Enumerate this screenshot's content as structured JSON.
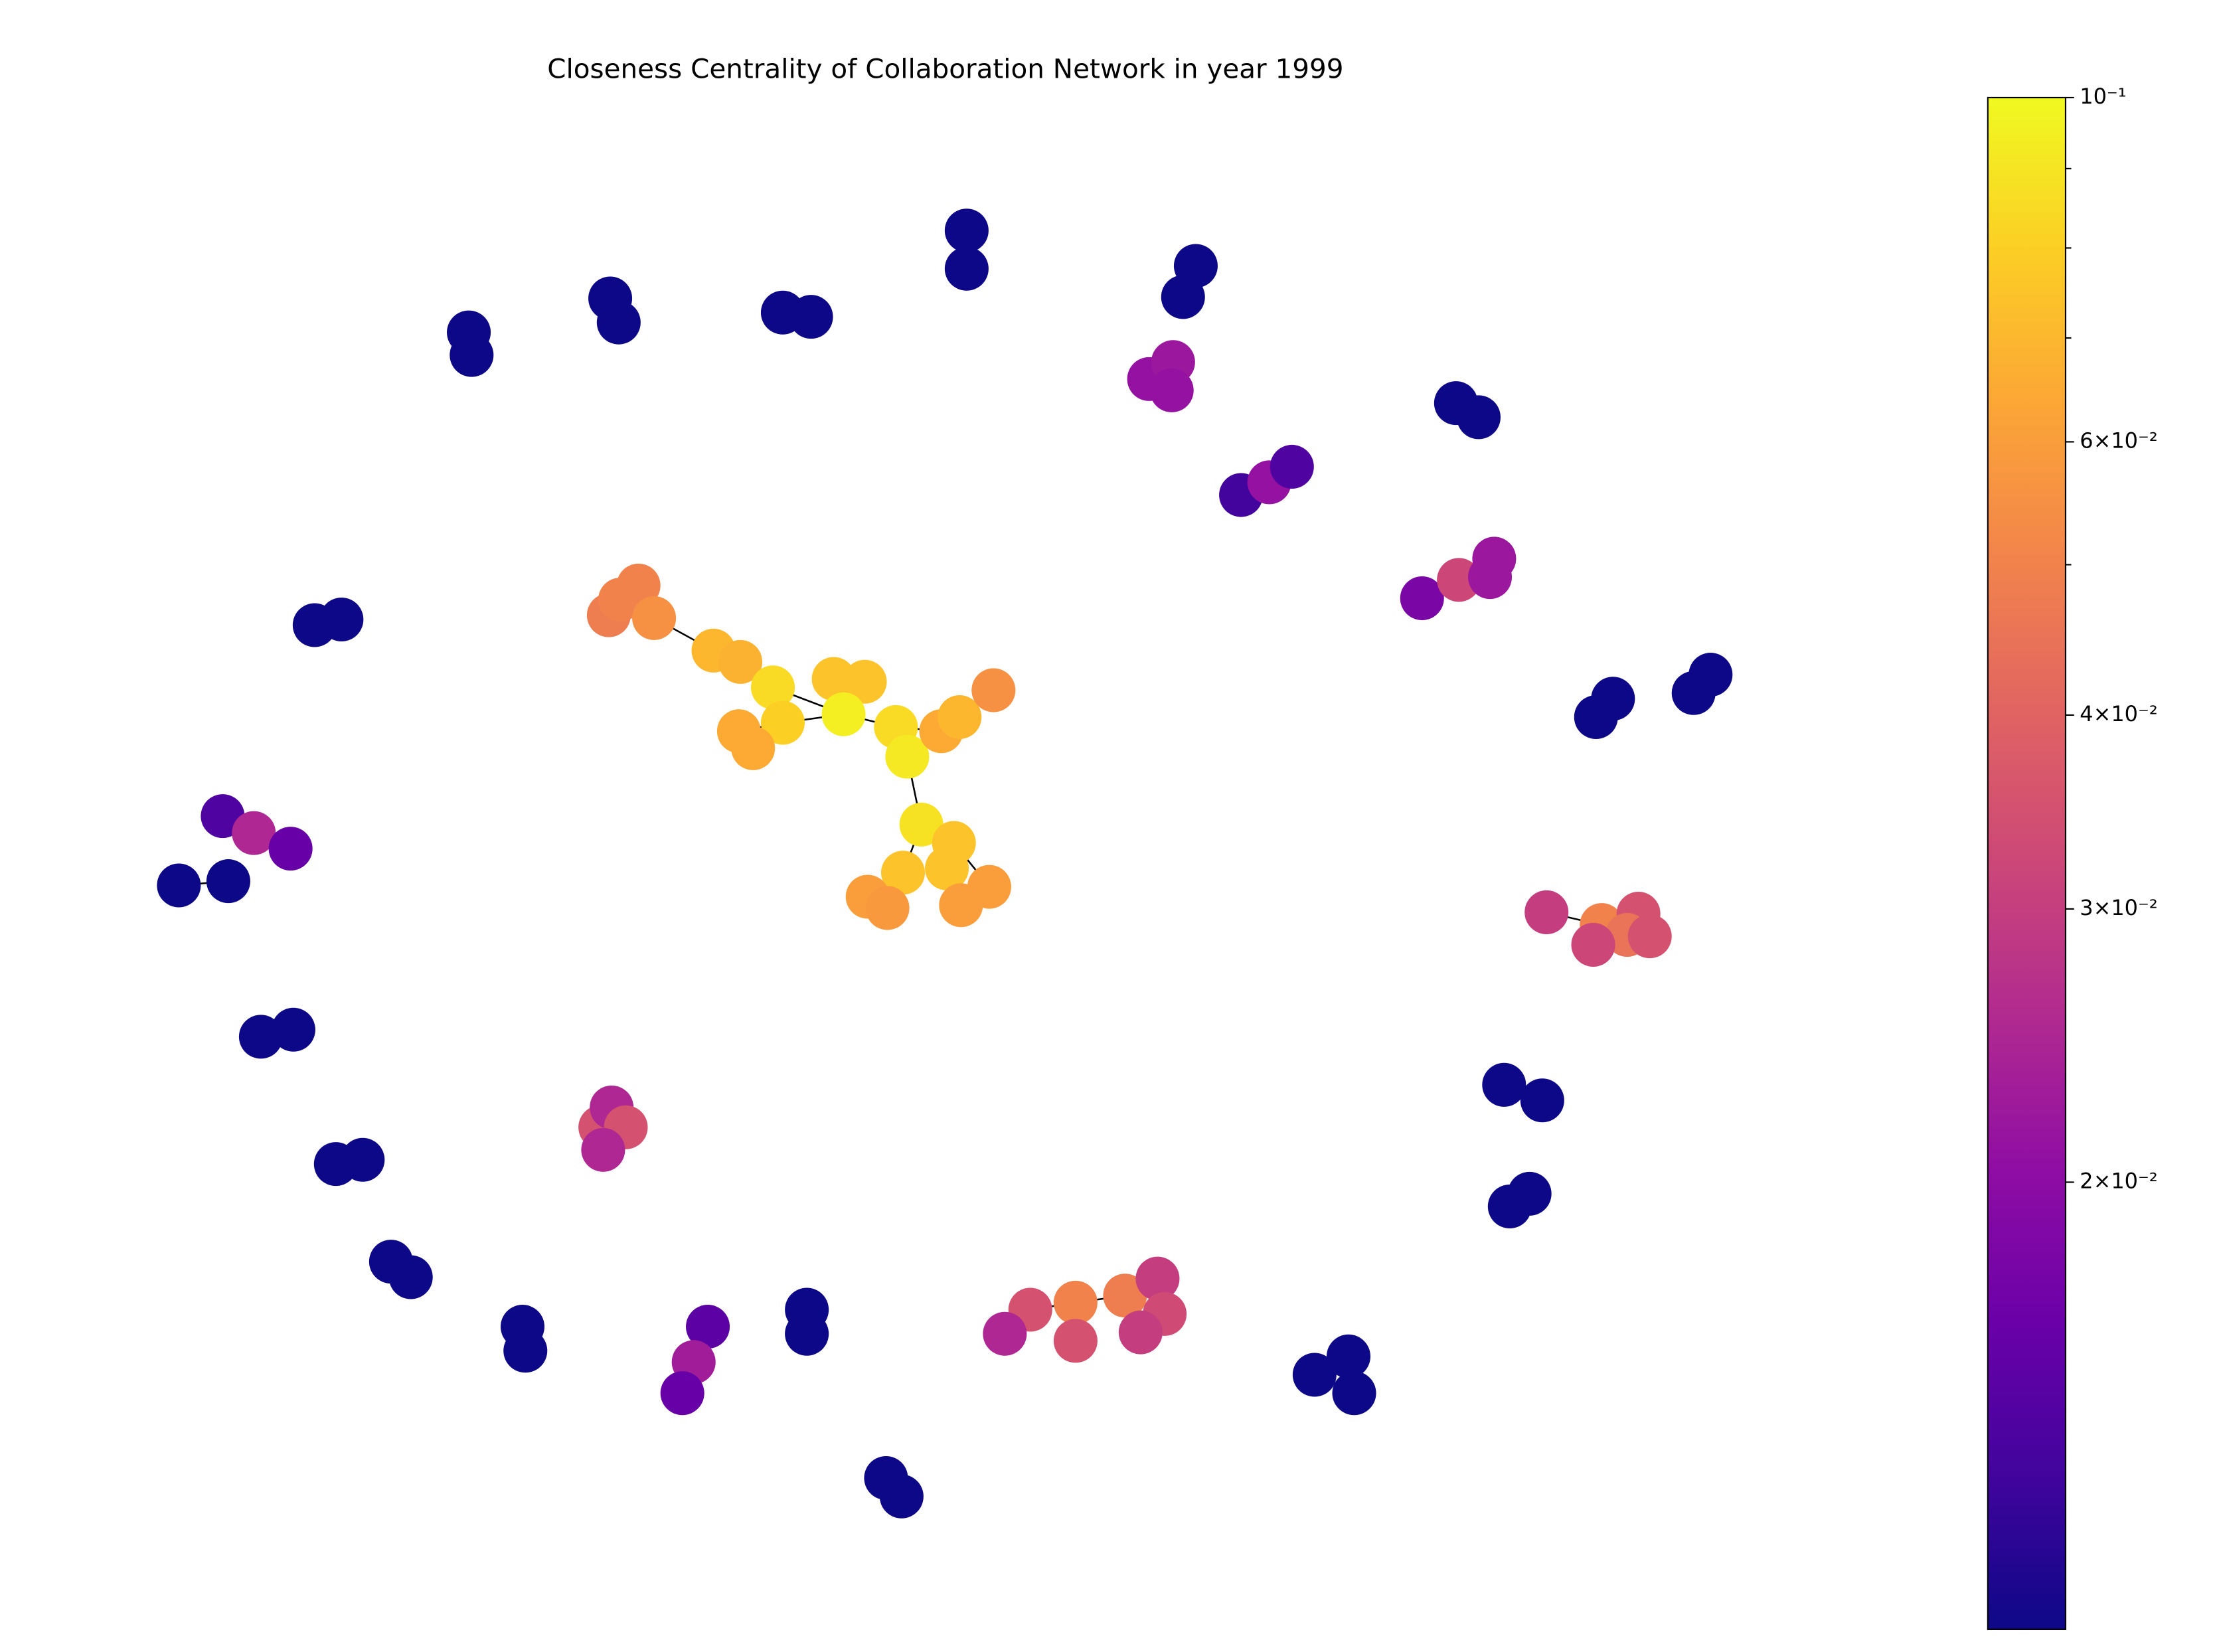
{
  "chart_data": {
    "type": "network",
    "title": "Closeness Centrality of Collaboration Network in year 1999",
    "colormap": "plasma",
    "log_scale": true,
    "ylim": [
      0.0103,
      0.1
    ],
    "yticks": [
      {
        "value": 0.1,
        "label": "10⁻¹"
      },
      {
        "value": 0.06,
        "label": "6×10⁻²"
      },
      {
        "value": 0.04,
        "label": "4×10⁻²"
      },
      {
        "value": 0.03,
        "label": "3×10⁻²"
      },
      {
        "value": 0.02,
        "label": "2×10⁻²"
      }
    ],
    "minor_ticks": [
      0.09,
      0.08,
      0.07,
      0.05
    ],
    "node_values": [
      0.048,
      0.05,
      0.05,
      0.055,
      0.07,
      0.068,
      0.085,
      0.08,
      0.065,
      0.065,
      0.075,
      0.075,
      0.095,
      0.085,
      0.092,
      0.065,
      0.07,
      0.055,
      0.088,
      0.075,
      0.075,
      0.075,
      0.06,
      0.06,
      0.06,
      0.058,
      0.03,
      0.05,
      0.035,
      0.045,
      0.035,
      0.032,
      0.035,
      0.05,
      0.048,
      0.03,
      0.033,
      0.03,
      0.035,
      0.025,
      0.035,
      0.025,
      0.035,
      0.025,
      0.014,
      0.025,
      0.016,
      0.018,
      0.032,
      0.022,
      0.022,
      0.021,
      0.022,
      0.021,
      0.013,
      0.021,
      0.014,
      0.015,
      0.023,
      0.016,
      0.0103,
      0.0103,
      0.0103,
      0.0103,
      0.0103,
      0.0103,
      0.0103,
      0.0103,
      0.0103,
      0.0103,
      0.0103,
      0.0103,
      0.0103,
      0.0103,
      0.0103,
      0.0103,
      0.0103,
      0.0103,
      0.0103,
      0.0103,
      0.0103,
      0.0103,
      0.0103,
      0.0103,
      0.0103,
      0.0103,
      0.0103,
      0.0103,
      0.0103,
      0.0103,
      0.0103,
      0.0103,
      0.0103,
      0.0103,
      0.0103,
      0.0103,
      0.0103,
      0.0103,
      0.0103
    ]
  }
}
